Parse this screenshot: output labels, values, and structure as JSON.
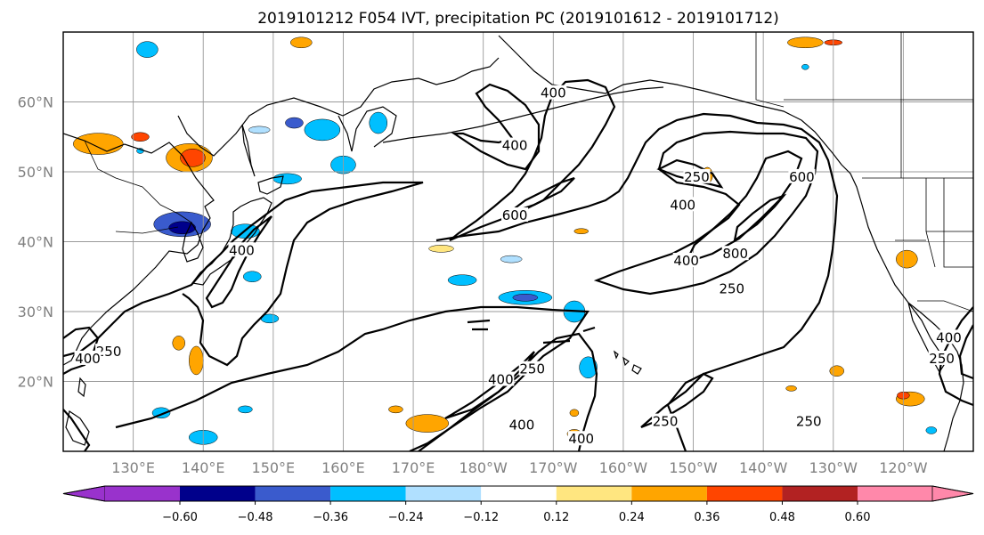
{
  "title": "2019101212 F054 IVT, precipitation PC (2019101612 - 2019101712)",
  "map": {
    "lat_ticks": [
      "60°N",
      "50°N",
      "40°N",
      "30°N",
      "20°N"
    ],
    "lat_values": [
      60,
      50,
      40,
      30,
      20
    ],
    "lon_ticks": [
      "130°E",
      "140°E",
      "150°E",
      "160°E",
      "170°E",
      "180°W",
      "170°W",
      "160°W",
      "150°W",
      "140°W",
      "130°W",
      "120°W"
    ],
    "lon_values": [
      130,
      140,
      150,
      160,
      170,
      180,
      190,
      200,
      210,
      220,
      230,
      240
    ],
    "extent": {
      "lon_min": 120,
      "lon_max": 250,
      "lat_min": 10,
      "lat_max": 70
    }
  },
  "ivt_contour_levels": [
    250,
    400,
    600,
    800
  ],
  "contour_labels": [
    {
      "text": "400",
      "lon": 190,
      "lat": 61
    },
    {
      "text": "400",
      "lon": 184.5,
      "lat": 53.5
    },
    {
      "text": "600",
      "lon": 184.5,
      "lat": 43.5
    },
    {
      "text": "400",
      "lon": 145.5,
      "lat": 38.5
    },
    {
      "text": "250",
      "lon": 126.5,
      "lat": 24
    },
    {
      "text": "400",
      "lon": 123.5,
      "lat": 23
    },
    {
      "text": "250",
      "lon": 210.5,
      "lat": 49
    },
    {
      "text": "400",
      "lon": 208.5,
      "lat": 45
    },
    {
      "text": "600",
      "lon": 225.5,
      "lat": 49
    },
    {
      "text": "400",
      "lon": 209,
      "lat": 37
    },
    {
      "text": "800",
      "lon": 216,
      "lat": 38
    },
    {
      "text": "250",
      "lon": 215.5,
      "lat": 33
    },
    {
      "text": "400",
      "lon": 182.5,
      "lat": 20
    },
    {
      "text": "250",
      "lon": 187,
      "lat": 21.5
    },
    {
      "text": "400",
      "lon": 185.5,
      "lat": 13.5
    },
    {
      "text": "400",
      "lon": 194,
      "lat": 11.5
    },
    {
      "text": "250",
      "lon": 206,
      "lat": 14
    },
    {
      "text": "250",
      "lon": 226.5,
      "lat": 14
    },
    {
      "text": "250",
      "lon": 245.5,
      "lat": 23
    },
    {
      "text": "400",
      "lon": 246.5,
      "lat": 26
    }
  ],
  "colorbar": {
    "tick_labels": [
      "−0.60",
      "−0.48",
      "−0.36",
      "−0.24",
      "−0.12",
      "0.12",
      "0.24",
      "0.36",
      "0.48",
      "0.60"
    ],
    "tick_values": [
      -0.6,
      -0.48,
      -0.36,
      -0.24,
      -0.12,
      0.12,
      0.24,
      0.36,
      0.48,
      0.6
    ],
    "colors": [
      "#9932cc",
      "#00008b",
      "#3a5bcd",
      "#00bfff",
      "#b0e0ff",
      "#ffffff",
      "#ffe680",
      "#ffa500",
      "#ff4500",
      "#b22222",
      "#ff88aa"
    ]
  },
  "colors": {
    "land_line": "#000000",
    "grid": "#9a9a9a",
    "axis_label": "#808080"
  }
}
